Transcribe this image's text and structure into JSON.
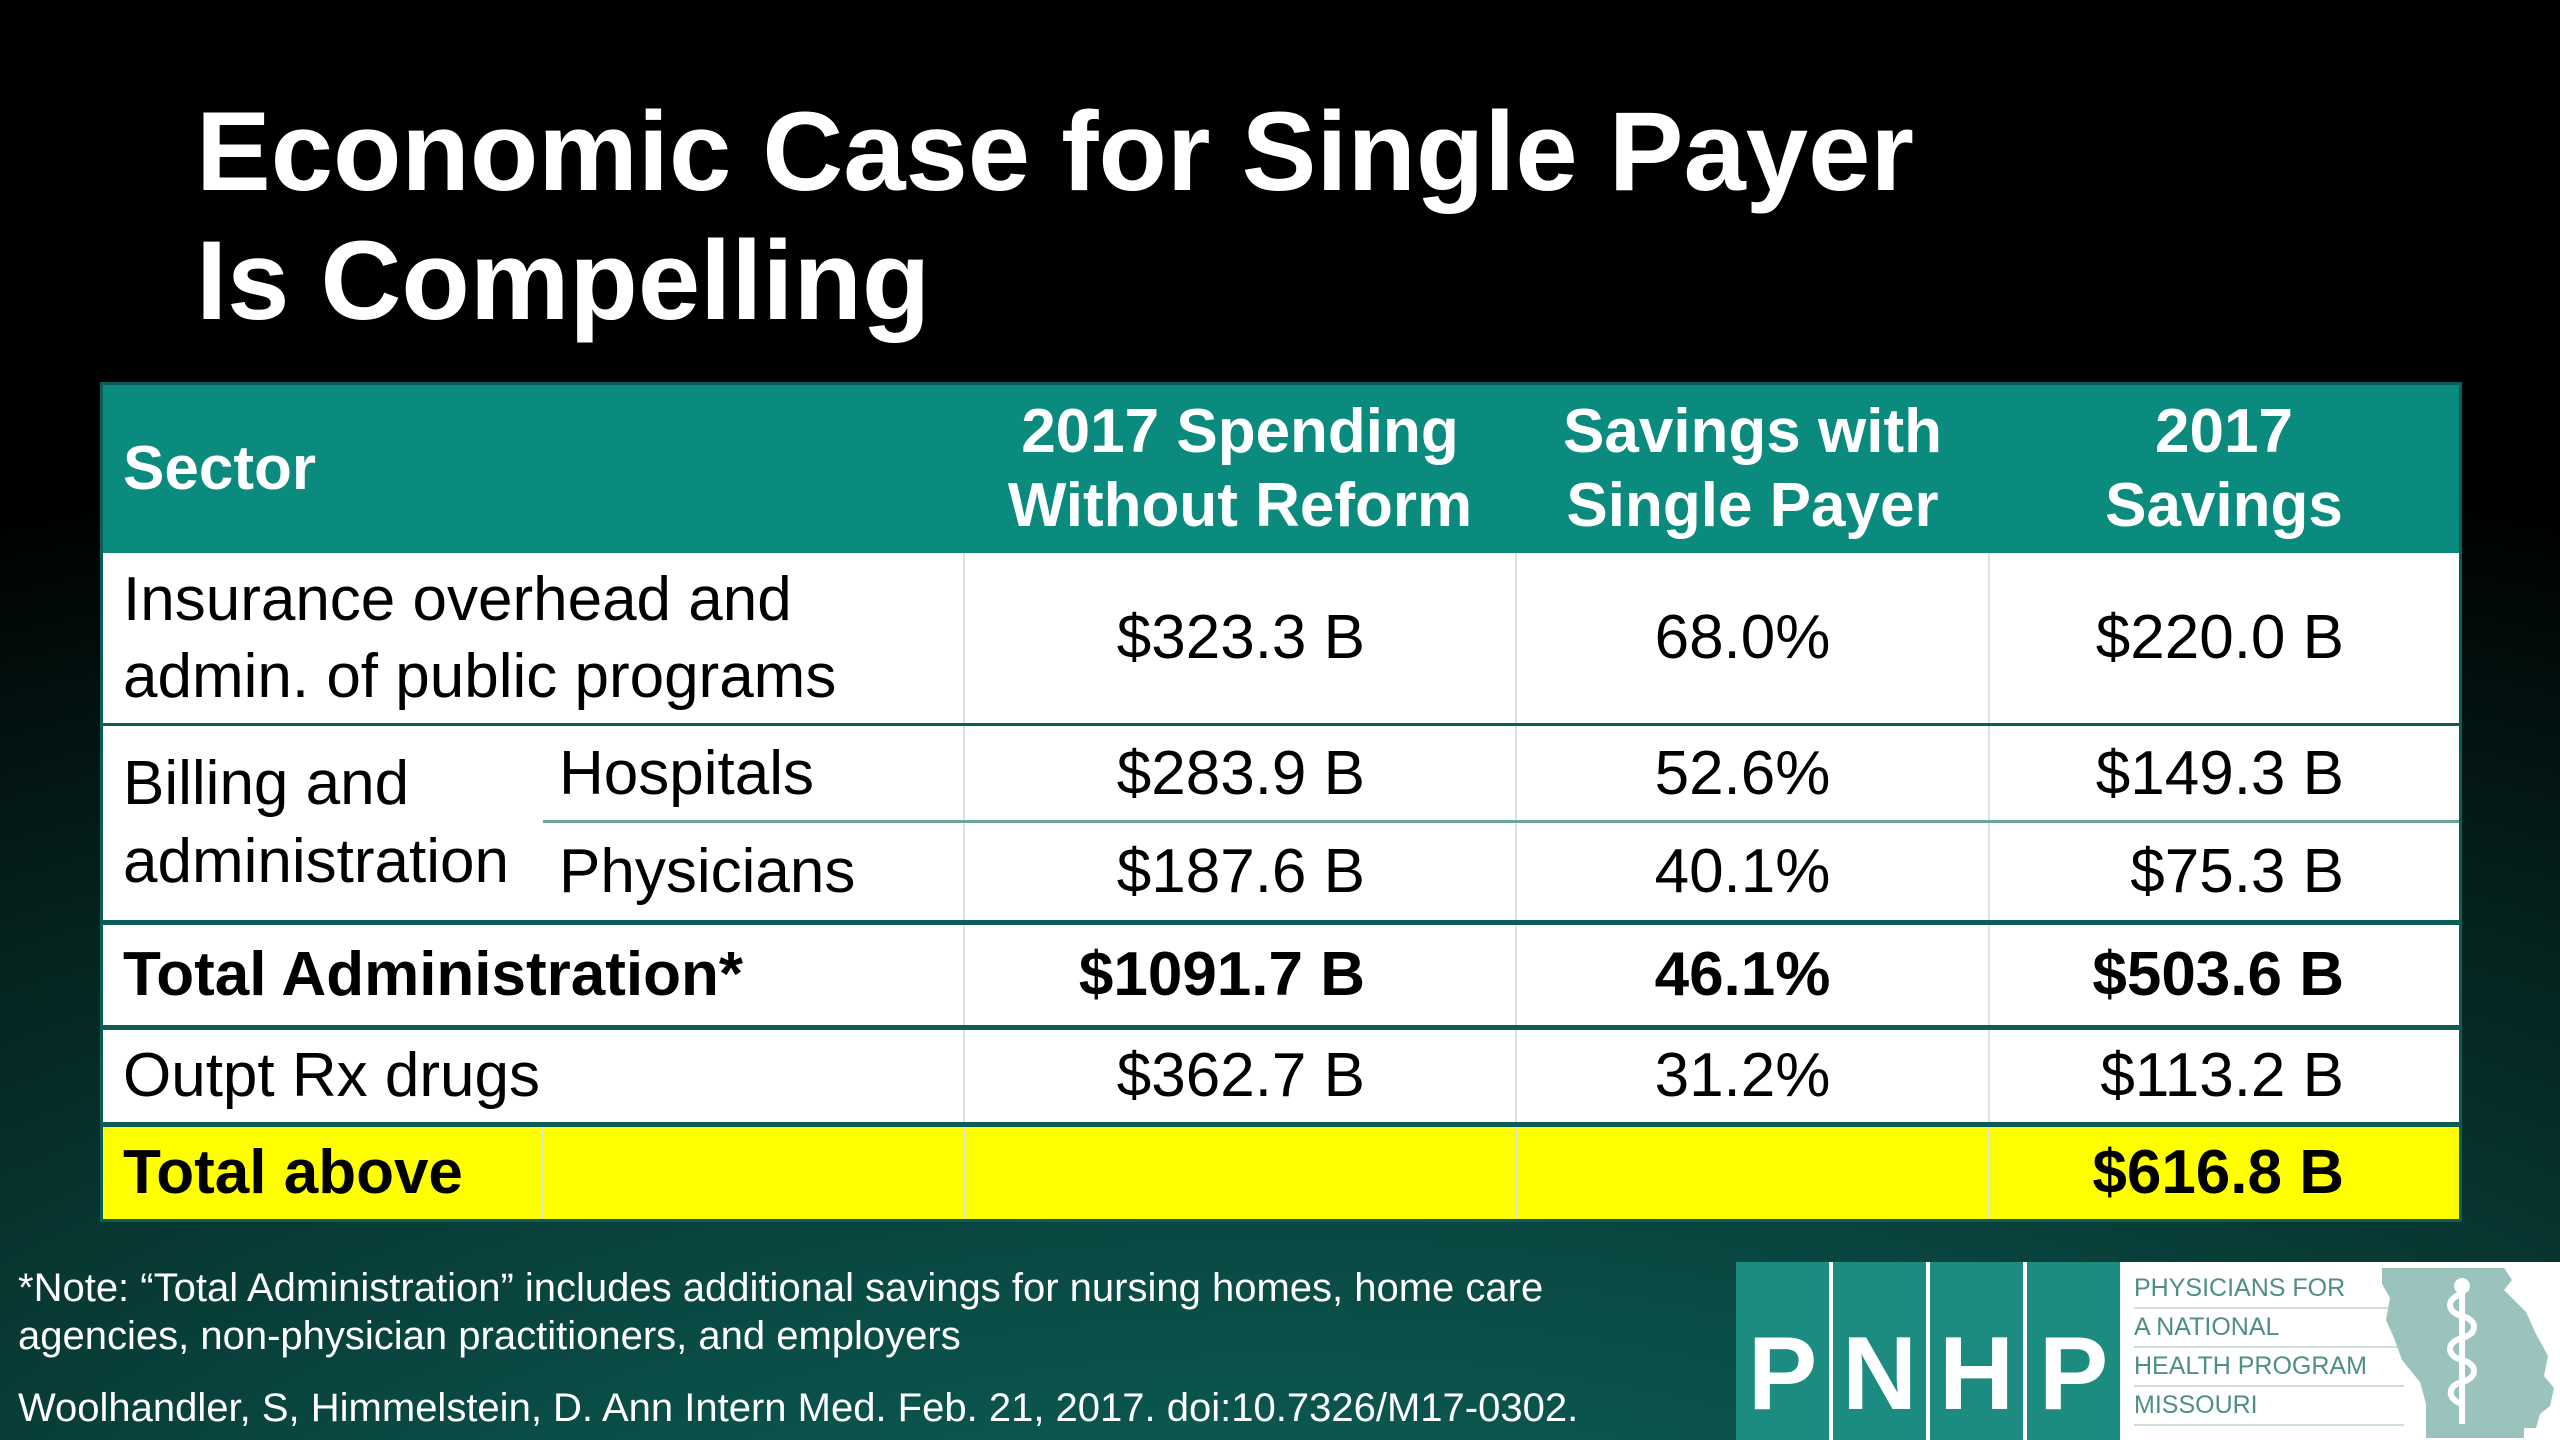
{
  "title": {
    "line1": "Economic Case for Single Payer",
    "line2": "Is Compelling"
  },
  "table": {
    "headers": {
      "sector": "Sector",
      "spending_line1": "2017 Spending",
      "spending_line2": "Without Reform",
      "savings_pct_line1": "Savings with",
      "savings_pct_line2": "Single Payer",
      "savings_line1": "2017",
      "savings_line2": "Savings"
    },
    "rows": {
      "insurance": {
        "label_line1": "Insurance overhead and",
        "label_line2": "admin. of public programs",
        "spending": "$323.3 B",
        "pct": "68.0%",
        "savings": "$220.0 B"
      },
      "billing_group": {
        "label_line1": "Billing and",
        "label_line2": "administration"
      },
      "hospitals": {
        "label": "Hospitals",
        "spending": "$283.9 B",
        "pct": "52.6%",
        "savings": "$149.3 B"
      },
      "physicians": {
        "label": "Physicians",
        "spending": "$187.6 B",
        "pct": "40.1%",
        "savings": "$75.3 B"
      },
      "total_admin": {
        "label": "Total Administration*",
        "spending": "$1091.7 B",
        "pct": "46.1%",
        "savings": "$503.6 B"
      },
      "rx": {
        "label": "Outpt Rx drugs",
        "spending": "$362.7 B",
        "pct": "31.2%",
        "savings": "$113.2 B"
      },
      "total_above": {
        "label": "Total above",
        "savings": "$616.8 B"
      }
    },
    "colors": {
      "header_bg": "#0b8a7e",
      "highlight_bg": "#ffff00"
    }
  },
  "note": {
    "line1": "*Note: “Total Administration” includes additional savings for nursing homes, home care",
    "line2": "agencies, non-physician practitioners, and employers"
  },
  "citation": "Woolhandler, S, Himmelstein, D. Ann Intern Med. Feb. 21, 2017. doi:10.7326/M17-0302.",
  "logo": {
    "letters": [
      "P",
      "N",
      "H",
      "P"
    ],
    "org_lines": [
      "PHYSICIANS FOR",
      "A NATIONAL",
      "HEALTH PROGRAM",
      "MISSOURI"
    ],
    "icon": "missouri-state-caduceus-icon",
    "color": "#1b8c7f"
  }
}
